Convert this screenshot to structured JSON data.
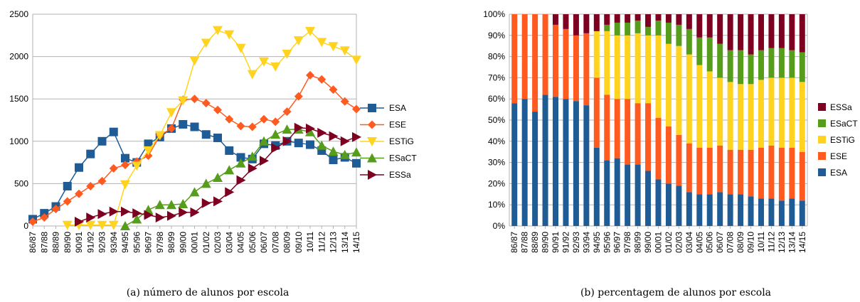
{
  "categories": [
    "86/87",
    "87/88",
    "88/89",
    "89/90",
    "90/91",
    "91/92",
    "92/93",
    "93/94",
    "94/95",
    "95/96",
    "96/97",
    "97/98",
    "98/99",
    "99/00",
    "00/01",
    "01/02",
    "02/03",
    "03/04",
    "04/05",
    "05/06",
    "06/07",
    "07/08",
    "08/09",
    "09/10",
    "10/11",
    "11/12",
    "12/13",
    "13/14",
    "14/15"
  ],
  "colors": {
    "ESA": "#1f5b94",
    "ESE": "#ff5a1f",
    "ESTiG": "#ffd320",
    "ESaCT": "#579d1c",
    "ESSa": "#7e0021"
  },
  "chart_data": [
    {
      "type": "line",
      "caption": "(a)  número de alunos por escola",
      "ylim": [
        0,
        2500
      ],
      "yticks": [
        "0",
        "500",
        "1000",
        "1500",
        "2000",
        "2500"
      ],
      "grid": true,
      "legend_position": "right",
      "series": [
        {
          "name": "ESA",
          "marker": "square",
          "values": [
            80,
            150,
            230,
            470,
            690,
            850,
            1000,
            1110,
            800,
            750,
            970,
            1050,
            1150,
            1200,
            1170,
            1080,
            1040,
            890,
            810,
            790,
            970,
            950,
            1000,
            980,
            960,
            890,
            780,
            810,
            740
          ]
        },
        {
          "name": "ESE",
          "marker": "diamond",
          "values": [
            50,
            100,
            200,
            290,
            380,
            470,
            530,
            680,
            720,
            760,
            830,
            1070,
            1150,
            1490,
            1500,
            1450,
            1370,
            1260,
            1180,
            1170,
            1260,
            1230,
            1350,
            1530,
            1780,
            1730,
            1610,
            1470,
            1380
          ]
        },
        {
          "name": "ESTiG",
          "marker": "triangle-down",
          "values": [
            null,
            null,
            null,
            10,
            10,
            10,
            10,
            10,
            490,
            710,
            890,
            1070,
            1340,
            1480,
            1950,
            2160,
            2310,
            2260,
            2100,
            1790,
            1940,
            1880,
            2030,
            2190,
            2300,
            2170,
            2120,
            2070,
            1960
          ]
        },
        {
          "name": "ESaCT",
          "marker": "triangle-up",
          "values": [
            null,
            null,
            null,
            null,
            null,
            null,
            null,
            null,
            0,
            80,
            190,
            250,
            250,
            260,
            400,
            500,
            570,
            660,
            740,
            820,
            1000,
            1080,
            1140,
            1140,
            1110,
            950,
            880,
            840,
            870
          ]
        },
        {
          "name": "ESSa",
          "marker": "triangle-right",
          "values": [
            null,
            null,
            null,
            null,
            50,
            100,
            140,
            170,
            170,
            150,
            130,
            100,
            120,
            160,
            160,
            270,
            290,
            400,
            540,
            680,
            770,
            920,
            1000,
            1160,
            1150,
            1100,
            1060,
            1000,
            1050
          ]
        }
      ]
    },
    {
      "type": "bar",
      "stacked": true,
      "percent": true,
      "caption": "(b)  percentagem de alunos por escola",
      "ylim": [
        0,
        100
      ],
      "yticks": [
        "0%",
        "10%",
        "20%",
        "30%",
        "40%",
        "50%",
        "60%",
        "70%",
        "80%",
        "90%",
        "100%"
      ],
      "grid": true,
      "legend_position": "right",
      "legend_order": [
        "ESSa",
        "ESaCT",
        "ESTiG",
        "ESE",
        "ESA"
      ],
      "series": [
        {
          "name": "ESA",
          "values": [
            58,
            60,
            54,
            62,
            61,
            60,
            59,
            57,
            37,
            31,
            32,
            29,
            29,
            26,
            22,
            20,
            19,
            16,
            15,
            15,
            16,
            15,
            15,
            14,
            13,
            13,
            12,
            13,
            12
          ]
        },
        {
          "name": "ESE",
          "values": [
            42,
            40,
            46,
            38,
            34,
            33,
            31,
            34,
            33,
            31,
            28,
            31,
            29,
            32,
            29,
            27,
            24,
            23,
            22,
            22,
            22,
            21,
            21,
            22,
            24,
            25,
            25,
            24,
            23
          ]
        },
        {
          "name": "ESTiG",
          "values": [
            0,
            0,
            0,
            0,
            0,
            0,
            0,
            0,
            22,
            30,
            30,
            30,
            33,
            32,
            39,
            39,
            42,
            42,
            39,
            36,
            32,
            32,
            31,
            31,
            32,
            32,
            33,
            33,
            33
          ]
        },
        {
          "name": "ESaCT",
          "values": [
            0,
            0,
            0,
            0,
            0,
            0,
            0,
            0,
            0,
            3,
            6,
            6,
            6,
            4,
            7,
            10,
            10,
            12,
            13,
            16,
            16,
            15,
            16,
            14,
            14,
            14,
            14,
            13,
            14
          ]
        },
        {
          "name": "ESSa",
          "values": [
            0,
            0,
            0,
            0,
            5,
            7,
            10,
            9,
            8,
            5,
            4,
            4,
            3,
            6,
            3,
            4,
            5,
            7,
            11,
            11,
            14,
            17,
            17,
            19,
            17,
            16,
            16,
            17,
            18
          ]
        }
      ]
    }
  ]
}
